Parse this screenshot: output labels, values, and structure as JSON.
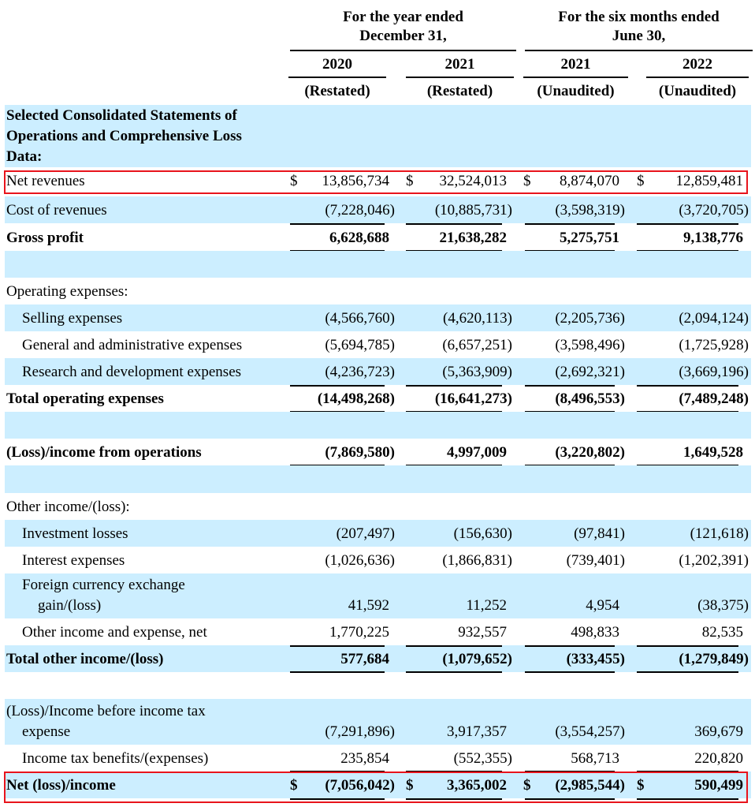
{
  "header": {
    "group1": [
      "For the year ended",
      "December 31,"
    ],
    "group2": [
      "For the six months ended",
      "June 30,"
    ],
    "years": [
      "2020",
      "2021",
      "2021",
      "2022"
    ],
    "status": [
      "(Restated)",
      "(Restated)",
      "(Unaudited)",
      "(Unaudited)"
    ]
  },
  "section_title": [
    "Selected Consolidated Statements of",
    "Operations and Comprehensive Loss",
    "Data:"
  ],
  "rows": [
    {
      "label": [
        "Net revenues"
      ],
      "values": [
        "13,856,734",
        "32,524,013",
        "8,874,070",
        "12,859,481"
      ],
      "dollar": true,
      "highlighted": true
    },
    {
      "label": [
        "Cost of revenues"
      ],
      "values": [
        "(7,228,046)",
        "(10,885,731)",
        "(3,598,319)",
        "(3,720,705)"
      ]
    },
    {
      "label": [
        "Gross profit"
      ],
      "values": [
        "6,628,688",
        "21,638,282",
        "5,275,751",
        "9,138,776"
      ],
      "bold": true
    },
    {
      "label": [
        ""
      ],
      "values": []
    },
    {
      "label": [
        "Operating expenses:"
      ],
      "values": []
    },
    {
      "label": [
        "Selling expenses"
      ],
      "values": [
        "(4,566,760)",
        "(4,620,113)",
        "(2,205,736)",
        "(2,094,124)"
      ],
      "indent": true
    },
    {
      "label": [
        "General and administrative expenses"
      ],
      "values": [
        "(5,694,785)",
        "(6,657,251)",
        "(3,598,496)",
        "(1,725,928)"
      ],
      "indent": true
    },
    {
      "label": [
        "Research and development expenses"
      ],
      "values": [
        "(4,236,723)",
        "(5,363,909)",
        "(2,692,321)",
        "(3,669,196)"
      ],
      "indent": true
    },
    {
      "label": [
        "Total operating expenses"
      ],
      "values": [
        "(14,498,268)",
        "(16,641,273)",
        "(8,496,553)",
        "(7,489,248)"
      ],
      "bold": true
    },
    {
      "label": [
        ""
      ],
      "values": []
    },
    {
      "label": [
        "(Loss)/income from operations"
      ],
      "values": [
        "(7,869,580)",
        "4,997,009",
        "(3,220,802)",
        "1,649,528"
      ],
      "bold": true
    },
    {
      "label": [
        ""
      ],
      "values": []
    },
    {
      "label": [
        "Other income/(loss):"
      ],
      "values": []
    },
    {
      "label": [
        "Investment losses"
      ],
      "values": [
        "(207,497)",
        "(156,630)",
        "(97,841)",
        "(121,618)"
      ],
      "indent": true
    },
    {
      "label": [
        "Interest expenses"
      ],
      "values": [
        "(1,026,636)",
        "(1,866,831)",
        "(739,401)",
        "(1,202,391)"
      ],
      "indent": true
    },
    {
      "label": [
        "Foreign currency exchange",
        "gain/(loss)"
      ],
      "values": [
        "41,592",
        "11,252",
        "4,954",
        "(38,375)"
      ],
      "indent": true
    },
    {
      "label": [
        "Other income and expense, net"
      ],
      "values": [
        "1,770,225",
        "932,557",
        "498,833",
        "82,535"
      ],
      "indent": true
    },
    {
      "label": [
        "Total other income/(loss)"
      ],
      "values": [
        "577,684",
        "(1,079,652)",
        "(333,455)",
        "(1,279,849)"
      ],
      "bold": true
    },
    {
      "label": [
        ""
      ],
      "values": []
    },
    {
      "label": [
        "(Loss)/Income before income tax",
        "expense"
      ],
      "values": [
        "(7,291,896)",
        "3,917,357",
        "(3,554,257)",
        "369,679"
      ]
    },
    {
      "label": [
        "Income tax benefits/(expenses)"
      ],
      "values": [
        "235,854",
        "(552,355)",
        "568,713",
        "220,820"
      ],
      "indent": true
    },
    {
      "label": [
        "Net (loss)/income"
      ],
      "values": [
        "(7,056,042)",
        "3,365,002",
        "(2,985,544)",
        "590,499"
      ],
      "bold": true,
      "dollar": true,
      "highlighted": true
    }
  ],
  "currency_symbol": "$",
  "colors": {
    "shade": "#cceeff",
    "highlight_border": "#e8141c"
  }
}
